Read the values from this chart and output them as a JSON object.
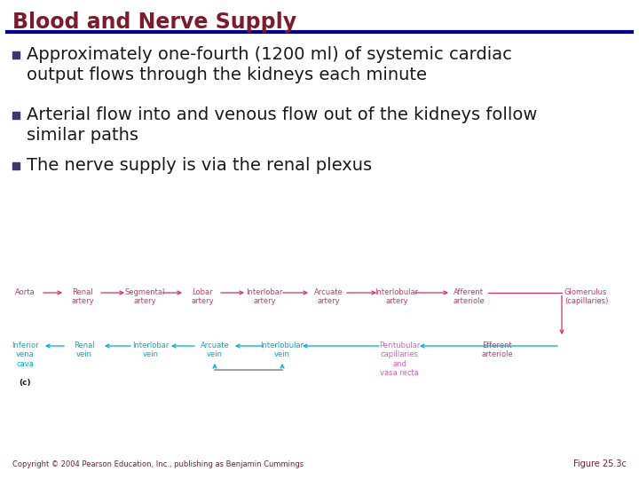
{
  "title": "Blood and Nerve Supply",
  "title_color": "#7B1C2E",
  "title_line_color": "#00008B",
  "bg_color": "#FFFFFF",
  "bullet_color": "#1A1A1A",
  "bullet_square_color": "#3A3A6A",
  "bullets": [
    "Approximately one-fourth (1200 ml) of systemic cardiac\noutput flows through the kidneys each minute",
    "Arterial flow into and venous flow out of the kidneys follow\nsimilar paths",
    "The nerve supply is via the renal plexus"
  ],
  "copyright": "Copyright © 2004 Pearson Education, Inc., publishing as Benjamin Cummings",
  "figure_label": "Figure 25.3c",
  "artery_color": "#CC3366",
  "vein_color": "#00AACC",
  "peritubular_color": "#CC66BB",
  "efferent_color": "#CC3366",
  "glomerulus_color": "#CC3366",
  "arrow_gray": "#888888",
  "artery_labels": [
    "Aorta",
    "Renal\nartery",
    "Segmental\nartery",
    "Lobar\nartery",
    "Interlobar\nartery",
    "Arcuate\nartery",
    "Interlobular\nartery",
    "Afferent\narteriole"
  ],
  "glomerulus_label": "Glomerulus\n(capillaries)",
  "vein_labels": [
    "Inferior\nvena\ncava",
    "Renal\nvein",
    "Interlobar\nvein",
    "Arcuate\nvein",
    "Interlobular\nvein",
    "Peritubular\ncapillaries\nand\nvasa recta",
    "Efferent\narteriole"
  ],
  "c_label": "(c)"
}
